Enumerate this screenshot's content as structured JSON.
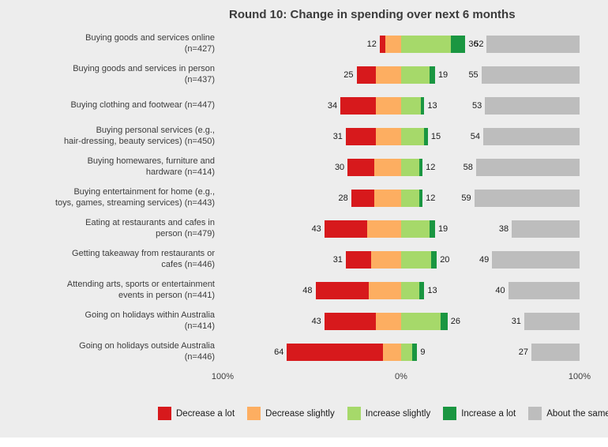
{
  "chart_data": {
    "type": "bar",
    "variant": "diverging-stacked-horizontal",
    "title": "Round 10: Change in spending over next 6 months",
    "x_axis": {
      "ticks": [
        "100%",
        "0%",
        "100%"
      ],
      "range_pct": [
        -100,
        100
      ]
    },
    "colors": {
      "decrease_a_lot": "#d7191c",
      "decrease_slightly": "#fdae61",
      "increase_slightly": "#a6d96a",
      "increase_a_lot": "#1a9641",
      "about_the_same": "#bdbdbd"
    },
    "legend": [
      {
        "label": "Decrease a lot",
        "color": "#d7191c"
      },
      {
        "label": "Decrease slightly",
        "color": "#fdae61"
      },
      {
        "label": "Increase slightly",
        "color": "#a6d96a"
      },
      {
        "label": "Increase a lot",
        "color": "#1a9641"
      },
      {
        "label": "About the same",
        "color": "#bdbdbd"
      }
    ],
    "rows": [
      {
        "label": "Buying goods and services online\n(n=427)",
        "decrease_a_lot": 3,
        "decrease_slightly": 9,
        "increase_slightly": 28,
        "increase_a_lot": 8,
        "about_the_same": 52,
        "decrease_label": "12",
        "increase_label": "36",
        "same_label": "52"
      },
      {
        "label": "Buying goods and services in person\n(n=437)",
        "decrease_a_lot": 11,
        "decrease_slightly": 14,
        "increase_slightly": 16,
        "increase_a_lot": 3,
        "about_the_same": 55,
        "decrease_label": "25",
        "increase_label": "19",
        "same_label": "55"
      },
      {
        "label": "Buying clothing and footwear (n=447)",
        "decrease_a_lot": 20,
        "decrease_slightly": 14,
        "increase_slightly": 11,
        "increase_a_lot": 2,
        "about_the_same": 53,
        "decrease_label": "34",
        "increase_label": "13",
        "same_label": "53"
      },
      {
        "label": "Buying personal services (e.g.,\nhair-dressing, beauty services) (n=450)",
        "decrease_a_lot": 17,
        "decrease_slightly": 14,
        "increase_slightly": 13,
        "increase_a_lot": 2,
        "about_the_same": 54,
        "decrease_label": "31",
        "increase_label": "15",
        "same_label": "54"
      },
      {
        "label": "Buying homewares, furniture and\nhardware (n=414)",
        "decrease_a_lot": 15,
        "decrease_slightly": 15,
        "increase_slightly": 10,
        "increase_a_lot": 2,
        "about_the_same": 58,
        "decrease_label": "30",
        "increase_label": "12",
        "same_label": "58"
      },
      {
        "label": "Buying entertainment for home (e.g.,\ntoys, games, streaming services) (n=443)",
        "decrease_a_lot": 13,
        "decrease_slightly": 15,
        "increase_slightly": 10,
        "increase_a_lot": 2,
        "about_the_same": 59,
        "decrease_label": "28",
        "increase_label": "12",
        "same_label": "59"
      },
      {
        "label": "Eating at restaurants and cafes in\nperson (n=479)",
        "decrease_a_lot": 24,
        "decrease_slightly": 19,
        "increase_slightly": 16,
        "increase_a_lot": 3,
        "about_the_same": 38,
        "decrease_label": "43",
        "increase_label": "19",
        "same_label": "38"
      },
      {
        "label": "Getting takeaway from restaurants or\ncafes (n=446)",
        "decrease_a_lot": 14,
        "decrease_slightly": 17,
        "increase_slightly": 17,
        "increase_a_lot": 3,
        "about_the_same": 49,
        "decrease_label": "31",
        "increase_label": "20",
        "same_label": "49"
      },
      {
        "label": "Attending arts, sports or entertainment\nevents in person (n=441)",
        "decrease_a_lot": 30,
        "decrease_slightly": 18,
        "increase_slightly": 10,
        "increase_a_lot": 3,
        "about_the_same": 40,
        "decrease_label": "48",
        "increase_label": "13",
        "same_label": "40"
      },
      {
        "label": "Going on holidays within Australia\n(n=414)",
        "decrease_a_lot": 29,
        "decrease_slightly": 14,
        "increase_slightly": 22,
        "increase_a_lot": 4,
        "about_the_same": 31,
        "decrease_label": "43",
        "increase_label": "26",
        "same_label": "31"
      },
      {
        "label": "Going on holidays outside Australia\n(n=446)",
        "decrease_a_lot": 54,
        "decrease_slightly": 10,
        "increase_slightly": 6,
        "increase_a_lot": 3,
        "about_the_same": 27,
        "decrease_label": "64",
        "increase_label": "9",
        "same_label": "27"
      }
    ]
  }
}
